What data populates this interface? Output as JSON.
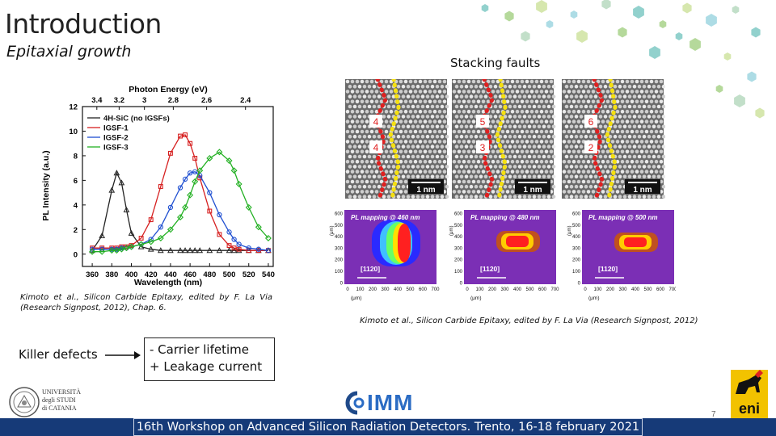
{
  "slide": {
    "title": "Introduction",
    "subtitle": "Epitaxial growth",
    "stacking_label": "Stacking faults",
    "cite_left": "Kimoto et al., Silicon Carbide Epitaxy, edited by F. La Via (Research Signpost, 2012), Chap. 6.",
    "cite_right": "Kimoto et al., Silicon Carbide Epitaxy, edited by F. La Via (Research Signpost, 2012)",
    "killer_label": "Killer defects",
    "effects": [
      "-  Carrier lifetime",
      "+  Leakage current"
    ],
    "footer": "16th Workshop on Advanced Silicon Radiation Detectors. Trento, 16-18 february 2021",
    "page_number": "7",
    "logo_unict": [
      "UNIVERSITÀ",
      "degli STUDI",
      "di CATANIA"
    ],
    "logo_imm": "IMM",
    "logo_eni": "eni"
  },
  "tem_panels": [
    {
      "labels": [
        "4",
        "4"
      ],
      "scale": "1 nm"
    },
    {
      "labels": [
        "5",
        "3"
      ],
      "scale": "1 nm"
    },
    {
      "labels": [
        "6",
        "2"
      ],
      "scale": "1 nm"
    }
  ],
  "pl_maps": [
    {
      "title": "PL mapping @ 460 nm",
      "direction": "[1120]",
      "yticks": [
        "600",
        "500",
        "400",
        "300",
        "200",
        "100",
        "0"
      ],
      "xticks": [
        "0",
        "100",
        "200",
        "300",
        "400",
        "500",
        "600",
        "700"
      ],
      "xunit": "(μm)",
      "yunit": "(μm)"
    },
    {
      "title": "PL mapping @ 480 nm",
      "direction": "[1120]",
      "yticks": [
        "600",
        "500",
        "400",
        "300",
        "200",
        "100",
        "0"
      ],
      "xticks": [
        "0",
        "100",
        "200",
        "300",
        "400",
        "500",
        "600",
        "700"
      ],
      "xunit": "(μm)",
      "yunit": "(μm)"
    },
    {
      "title": "PL mapping @ 500 nm",
      "direction": "[1120]",
      "yticks": [
        "600",
        "500",
        "400",
        "300",
        "200",
        "100",
        "0"
      ],
      "xticks": [
        "0",
        "100",
        "200",
        "300",
        "400",
        "500",
        "600",
        "700"
      ],
      "xunit": "(μm)",
      "yunit": "(μm)"
    }
  ],
  "chart_data": {
    "type": "line",
    "xlabel": "Wavelength (nm)",
    "ylabel": "PL Intensity (a.u.)",
    "top_label": "Photon Energy (eV)",
    "top_ticks": [
      "3.4",
      "3.2",
      "3",
      "2.8",
      "2.6",
      "2.4"
    ],
    "xlim": [
      350,
      545
    ],
    "ylim": [
      -1,
      12
    ],
    "xticks": [
      360,
      380,
      400,
      420,
      440,
      460,
      480,
      500,
      520,
      540
    ],
    "yticks": [
      0,
      2,
      4,
      6,
      8,
      10,
      12
    ],
    "x": [
      360,
      370,
      380,
      385,
      390,
      395,
      400,
      410,
      420,
      430,
      440,
      450,
      455,
      460,
      465,
      470,
      480,
      490,
      500,
      505,
      510,
      520,
      530,
      540
    ],
    "series": [
      {
        "name": "4H-SiC (no IGSFs)",
        "color": "#222222",
        "marker": "triangle",
        "values": [
          0.3,
          1.5,
          5.2,
          6.6,
          5.8,
          3.6,
          1.7,
          0.6,
          0.4,
          0.3,
          0.3,
          0.3,
          0.3,
          0.3,
          0.3,
          0.3,
          0.3,
          0.3,
          0.3,
          0.3,
          0.3,
          0.3,
          0.3,
          0.3
        ]
      },
      {
        "name": "IGSF-1",
        "color": "#d62020",
        "marker": "square",
        "values": [
          0.5,
          0.5,
          0.5,
          0.5,
          0.6,
          0.6,
          0.7,
          1.3,
          2.8,
          5.5,
          8.2,
          9.6,
          9.7,
          9.0,
          7.8,
          6.2,
          3.5,
          1.6,
          0.7,
          0.5,
          0.4,
          0.3,
          0.3,
          0.3
        ]
      },
      {
        "name": "IGSF-2",
        "color": "#1f4fd1",
        "marker": "circle",
        "values": [
          0.4,
          0.4,
          0.4,
          0.4,
          0.5,
          0.5,
          0.6,
          0.8,
          1.2,
          2.2,
          3.8,
          5.4,
          6.1,
          6.6,
          6.7,
          6.4,
          5.0,
          3.2,
          1.8,
          1.2,
          0.8,
          0.5,
          0.4,
          0.3
        ]
      },
      {
        "name": "IGSF-3",
        "color": "#22b022",
        "marker": "diamond",
        "values": [
          0.2,
          0.2,
          0.3,
          0.3,
          0.4,
          0.5,
          0.6,
          0.8,
          1.0,
          1.3,
          2.0,
          3.0,
          3.8,
          4.8,
          5.9,
          6.8,
          7.8,
          8.3,
          7.6,
          6.8,
          5.7,
          3.8,
          2.2,
          1.3
        ]
      }
    ]
  }
}
